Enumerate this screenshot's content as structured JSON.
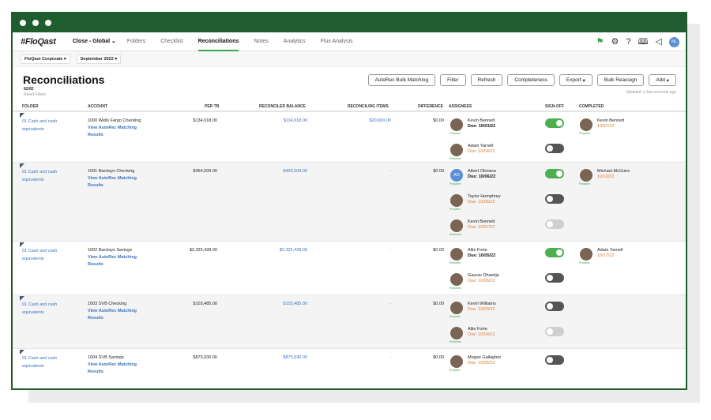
{
  "nav": {
    "logo": "#FloQast",
    "close_label": "Close - Global",
    "items": [
      "Folders",
      "Checklist",
      "Reconciliations",
      "Notes",
      "Analytics",
      "Flux Analysis"
    ],
    "avatar": "NL",
    "icons": [
      "flag-icon",
      "gear-icon",
      "help-icon",
      "book-icon",
      "megaphone-icon"
    ]
  },
  "filters": {
    "entity": "FloQast Corporate",
    "period": "September 2022"
  },
  "page": {
    "title": "Reconciliations",
    "count": "82/82",
    "reset": "Reset Filters",
    "updated": "Updated: a few seconds ago"
  },
  "actions": [
    "AutoRec Bulk Matching",
    "Filter",
    "Refresh",
    "Completeness",
    "Export",
    "Bulk Reassign",
    "Add"
  ],
  "columns": [
    "FOLDER",
    "ACCOUNT",
    "PER TB",
    "RECONCILED BALANCE",
    "RECONCILING ITEMS",
    "DIFFERENCE",
    "ASSIGNEES",
    "SIGN-OFF",
    "COMPLETED"
  ],
  "rows": [
    {
      "folder": "01 Cash and cash equivalents",
      "account": "1000 Wells Fargo Checking",
      "link": "View AutoRec Matching Results",
      "per_tb": "$134,918.00",
      "reconciled": "$114,918.00",
      "items": "$20,000.00",
      "difference": "$0.00",
      "assignees": [
        {
          "name": "Kevin Bennett",
          "due": "Due: 10/03/22",
          "role": "Preparer",
          "due_style": "black",
          "signoff": "on"
        },
        {
          "name": "Adam Yarnell",
          "due": "Due: 10/04/22",
          "role": "Reviewer",
          "due_style": "orange",
          "signoff": "off"
        }
      ],
      "completed": {
        "name": "Kevin Bennett",
        "date": "10/07/22",
        "role": "Preparer"
      }
    },
    {
      "folder": "01 Cash and cash equivalents",
      "account": "1001 Barclays Checking",
      "link": "View AutoRec Matching Results",
      "per_tb": "$454,509.00",
      "reconciled": "$454,509.00",
      "items": "-",
      "difference": "$0.00",
      "assignees": [
        {
          "name": "Albert Oliviana",
          "due": "Due: 10/06/22",
          "role": "Preparer",
          "due_style": "black",
          "signoff": "on",
          "initials": "AO"
        },
        {
          "name": "Taylor Humphrey",
          "due": "Due: 10/06/22",
          "role": "Preparer",
          "due_style": "orange",
          "signoff": "off"
        },
        {
          "name": "Kevin Bennett",
          "due": "Due: 10/07/22",
          "role": "Reviewer",
          "due_style": "orange",
          "signoff": "dis"
        }
      ],
      "completed": {
        "name": "Michael McGuire",
        "date": "10/10/22",
        "role": "Preparer"
      }
    },
    {
      "folder": "01 Cash and cash equivalents",
      "account": "1002 Barclays Savings",
      "link": "View AutoRec Matching Results",
      "per_tb": "$2,325,428.00",
      "reconciled": "$2,325,428.00",
      "items": "-",
      "difference": "$0.00",
      "assignees": [
        {
          "name": "Allie Forte",
          "due": "Due: 10/05/22",
          "role": "Preparer",
          "due_style": "black",
          "signoff": "on"
        },
        {
          "name": "Gaurav Dhamija",
          "due": "Due: 10/06/22",
          "role": "Reviewer",
          "due_style": "orange",
          "signoff": "off"
        }
      ],
      "completed": {
        "name": "Adam Yarnell",
        "date": "10/17/22",
        "role": "Preparer"
      }
    },
    {
      "folder": "01 Cash and cash equivalents",
      "account": "1003 SVB Checking",
      "link": "View AutoRec Matching Results",
      "per_tb": "$103,485.00",
      "reconciled": "$103,485.00",
      "items": "-",
      "difference": "$0.00",
      "assignees": [
        {
          "name": "Kevin Williams",
          "due": "Due: 10/03/22",
          "role": "Preparer",
          "due_style": "orange",
          "signoff": "off"
        },
        {
          "name": "Allie Forte",
          "due": "Due: 10/04/22",
          "role": "Reviewer",
          "due_style": "orange",
          "signoff": "dis"
        }
      ],
      "completed": null
    },
    {
      "folder": "01 Cash and cash equivalents",
      "account": "1004 SVB Savings",
      "link": "View AutoRec Matching Results",
      "per_tb": "$875,930.00",
      "reconciled": "$875,930.00",
      "items": "-",
      "difference": "$0.00",
      "assignees": [
        {
          "name": "Megan Gallagher",
          "due": "Due: 10/05/22",
          "role": "Preparer",
          "due_style": "orange",
          "signoff": "off"
        }
      ],
      "completed": null
    }
  ]
}
